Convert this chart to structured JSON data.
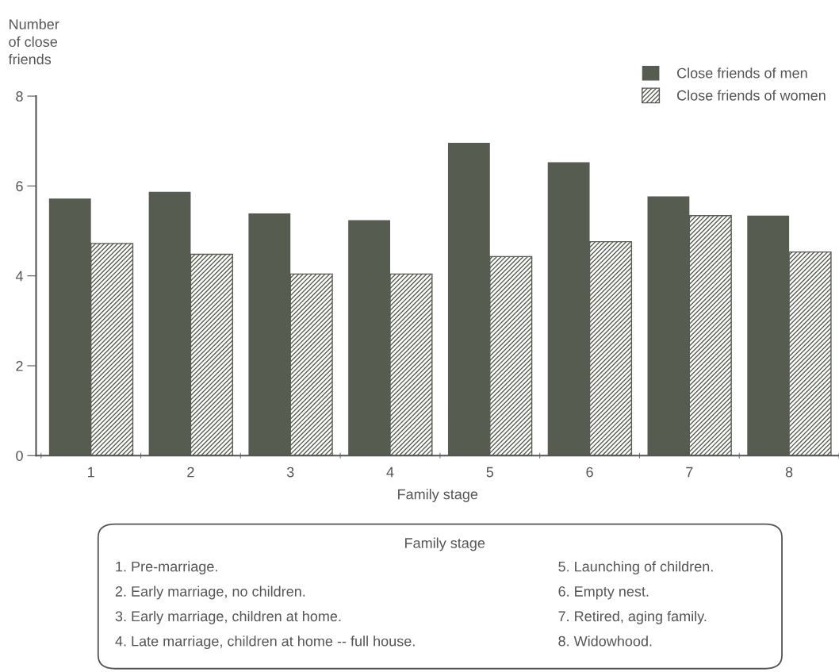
{
  "chart_data": {
    "type": "bar",
    "ylabel": "Number\nof close\nfriends",
    "xlabel": "Family stage",
    "categories": [
      "1",
      "2",
      "3",
      "4",
      "5",
      "6",
      "7",
      "8"
    ],
    "series": [
      {
        "name": "Close friends of men",
        "color": "#565c50",
        "values": [
          5.72,
          5.87,
          5.39,
          5.24,
          6.96,
          6.53,
          5.77,
          5.34
        ]
      },
      {
        "name": "Close friends of women",
        "color": "#565c50",
        "values": [
          4.72,
          4.48,
          4.04,
          4.04,
          4.43,
          4.76,
          5.34,
          4.53
        ]
      }
    ],
    "ylim": [
      0,
      8
    ],
    "yticks": [
      0,
      2,
      4,
      6,
      8
    ],
    "grid": false,
    "legend": "top right",
    "annotations": [
      "Family stage",
      "1. Pre-marriage.",
      "2. Early marriage, no children.",
      "3. Early marriage, children at home.",
      "4. Late marriage, children at home -- full house.",
      "5. Launching of children.",
      "6. Empty nest.",
      "7. Retired, aging family.",
      "8. Widowhood."
    ]
  }
}
